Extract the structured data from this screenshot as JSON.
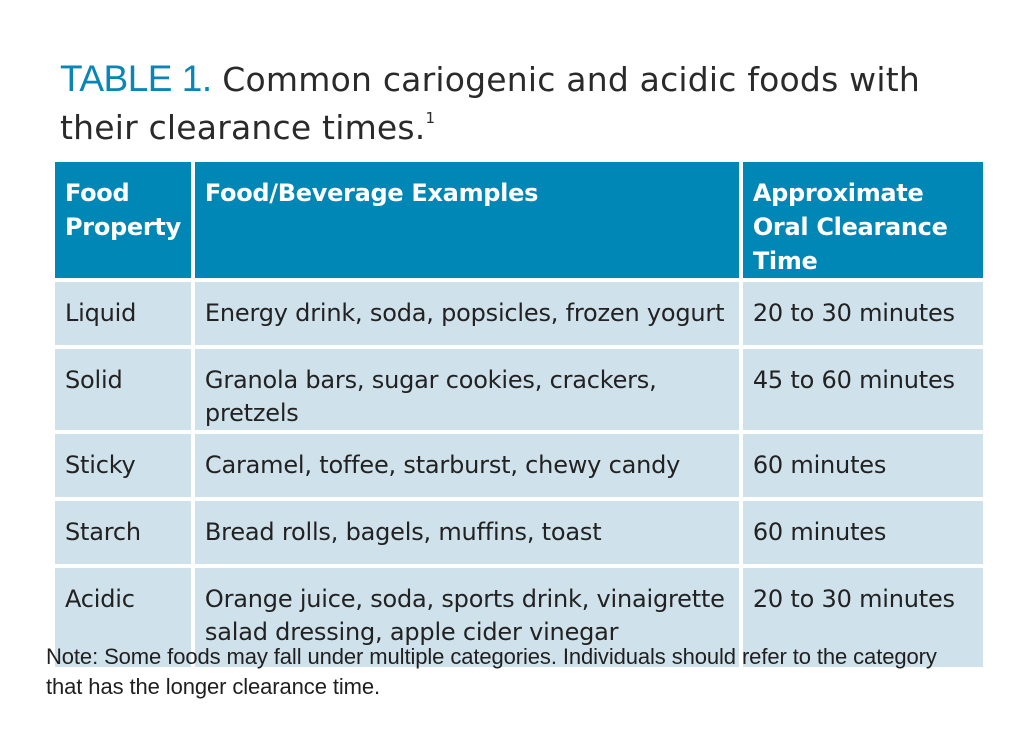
{
  "caption": {
    "label": "TABLE 1.",
    "text": " Common cariogenic and acidic foods with their clearance times.",
    "reference": "1"
  },
  "table": {
    "headers": [
      "Food Property",
      "Food/Beverage Examples",
      "Approximate Oral Clearance Time"
    ],
    "rows": [
      {
        "property": "Liquid",
        "examples": "Energy drink, soda, popsicles, frozen yogurt",
        "time": "20 to 30 minutes"
      },
      {
        "property": "Solid",
        "examples": "Granola bars, sugar cookies, crackers, pretzels",
        "time": "45 to 60 minutes"
      },
      {
        "property": "Sticky",
        "examples": "Caramel, toffee, starburst, chewy candy",
        "time": "60 minutes"
      },
      {
        "property": "Starch",
        "examples": "Bread rolls, bagels, muffins, toast",
        "time": "60 minutes"
      },
      {
        "property": "Acidic",
        "examples": "Orange juice, soda, sports drink, vinaigrette salad dressing, apple cider vinegar",
        "time": "20 to 30 minutes"
      }
    ]
  },
  "note": "Note: Some foods may fall under multiple categories. Individuals should refer to the category that has the longer clearance time.",
  "colors": {
    "accent": "#0087b6",
    "row_background": "#cfe1ea",
    "text": "#1e1e1e"
  }
}
